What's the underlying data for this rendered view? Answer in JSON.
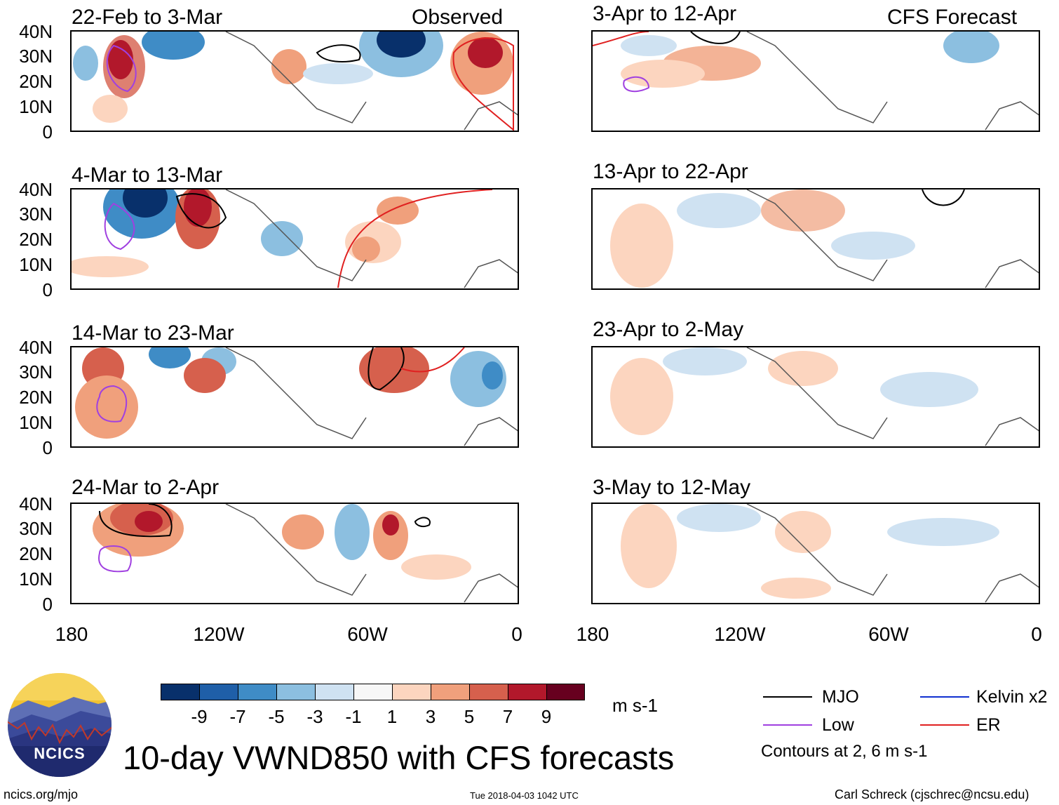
{
  "title": "10-day VWND850 with CFS forecasts",
  "observed_label": "Observed",
  "forecast_label": "CFS Forecast",
  "panels": {
    "left": [
      "22-Feb to 3-Mar",
      "4-Mar to 13-Mar",
      "14-Mar to 23-Mar",
      "24-Mar to 2-Apr"
    ],
    "right": [
      "3-Apr to 12-Apr",
      "13-Apr to 22-Apr",
      "23-Apr to 2-May",
      "3-May to 12-May"
    ]
  },
  "lat_ticks": [
    "40N",
    "30N",
    "20N",
    "10N",
    "0"
  ],
  "lon_ticks": [
    "180",
    "120W",
    "60W",
    "0"
  ],
  "colorbar": {
    "labels": [
      "-9",
      "-7",
      "-5",
      "-3",
      "-1",
      "1",
      "3",
      "5",
      "7",
      "9"
    ],
    "colors": [
      "#08306b",
      "#1f5fa8",
      "#3f8cc6",
      "#8cbfe0",
      "#cfe2f2",
      "#f7f7f7",
      "#fcd5bf",
      "#f0a07c",
      "#d6604d",
      "#b2182b",
      "#67001f"
    ],
    "units": "m s-1"
  },
  "legend": {
    "items": [
      {
        "label": "MJO",
        "color": "#000000"
      },
      {
        "label": "Kelvin x2",
        "color": "#1030d0"
      },
      {
        "label": "Low",
        "color": "#a040e0"
      },
      {
        "label": "ER",
        "color": "#e02020"
      }
    ],
    "note": "Contours at 2, 6 m s-1"
  },
  "logo_text": "NCICS",
  "footer": {
    "left": "ncics.org/mjo",
    "center": "Tue 2018-04-03 1042 UTC",
    "right": "Carl Schreck (cjschrec@ncsu.edu)"
  }
}
